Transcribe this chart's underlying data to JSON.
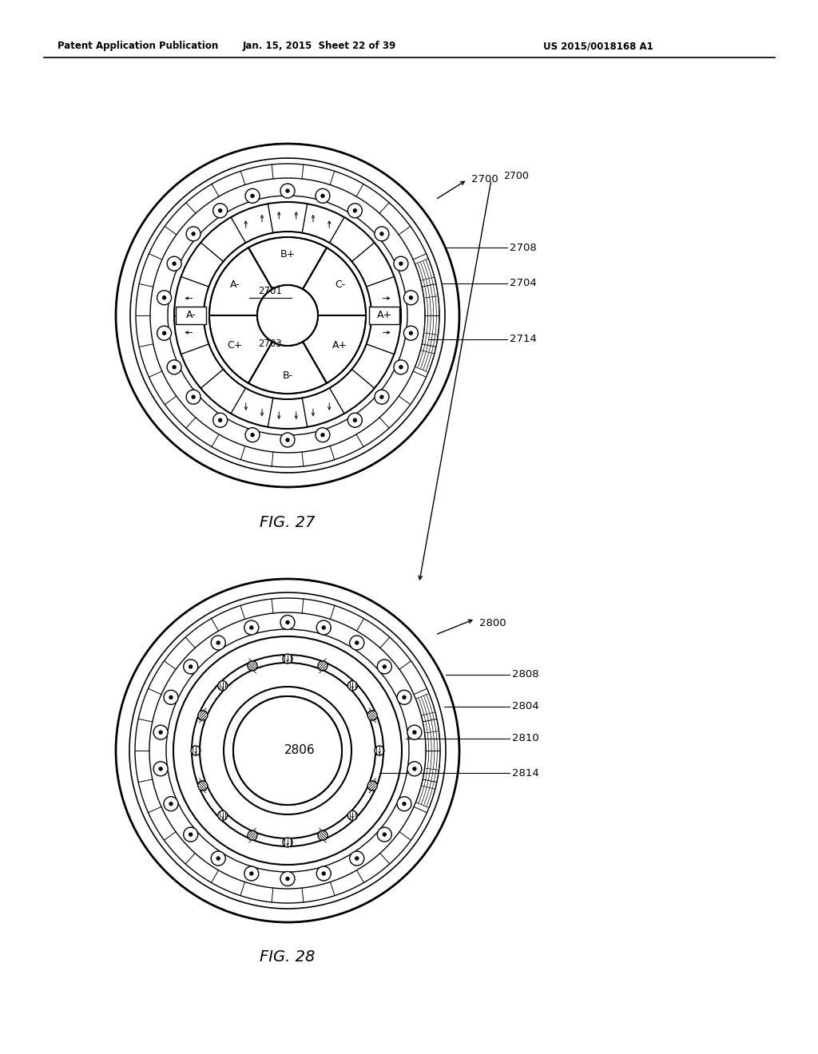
{
  "bg_color": "#ffffff",
  "line_color": "#000000",
  "header_left": "Patent Application Publication",
  "header_center": "Jan. 15, 2015  Sheet 22 of 39",
  "header_right": "US 2015/0018168 A1",
  "fig27_label": "FIG. 27",
  "fig28_label": "FIG. 28",
  "fig27_num": "2700",
  "fig27_2708": "2708",
  "fig27_2704": "2704",
  "fig27_2714": "2714",
  "fig27_2701": "2701",
  "fig27_2703": "2703",
  "fig28_num": "2800",
  "fig28_2808": "2808",
  "fig28_2804": "2804",
  "fig28_2810": "2810",
  "fig28_2814": "2814",
  "fig28_2806": "2806"
}
